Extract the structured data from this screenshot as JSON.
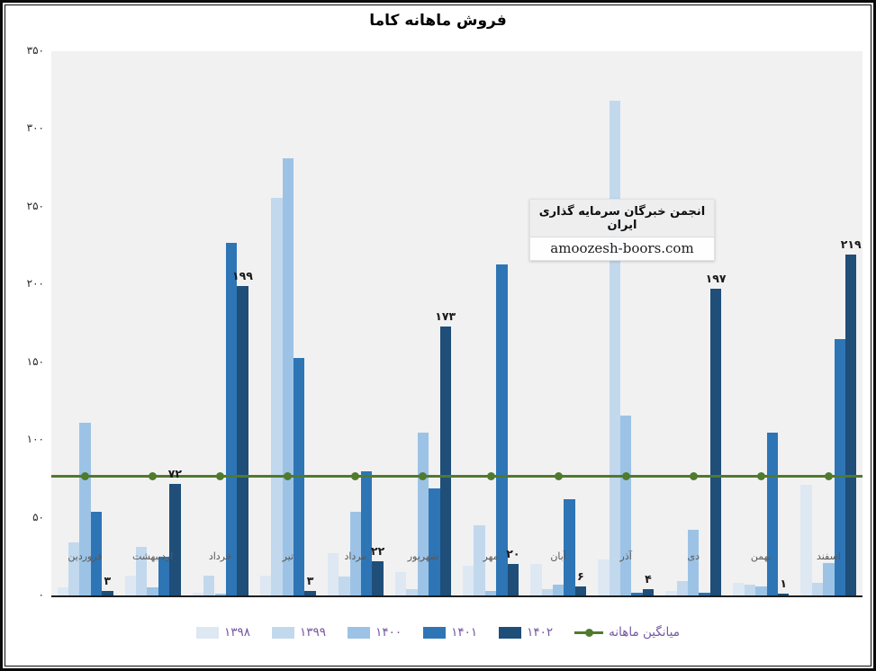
{
  "title": "فروش ماهانه کاما",
  "watermark": {
    "line1": "انجمن خبرگان سرمایه گذاری ایران",
    "line2": "amoozesh-boors.com"
  },
  "colors": {
    "plot_background": "#f1f1f2",
    "axis_line": "#1f1f1f",
    "legend_text": "#7456a3",
    "data_label_text": "#1a1a1a",
    "average_line": "#507a2d"
  },
  "chart_data": {
    "type": "bar",
    "title": "فروش ماهانه کاما",
    "categories": [
      "فروردین",
      "اردیبهشت",
      "خرداد",
      "تیر",
      "مرداد",
      "شهریور",
      "مهر",
      "آبان",
      "آذر",
      "دی",
      "بهمن",
      "اسفند"
    ],
    "series": [
      {
        "name": "۱۳۹۸",
        "color": "#dde8f3",
        "values": [
          5,
          13,
          2,
          13,
          27,
          15,
          19,
          20,
          23,
          3,
          8,
          71
        ]
      },
      {
        "name": "۱۳۹۹",
        "color": "#c2d8ed",
        "values": [
          34,
          31,
          13,
          256,
          12,
          4,
          45,
          4,
          318,
          9,
          7,
          8
        ]
      },
      {
        "name": "۱۴۰۰",
        "color": "#9cc3e5",
        "values": [
          111,
          5,
          1,
          281,
          54,
          105,
          3,
          7,
          116,
          42,
          6,
          21
        ]
      },
      {
        "name": "۱۴۰۱",
        "color": "#2e75b6",
        "values": [
          54,
          25,
          227,
          153,
          80,
          69,
          213,
          62,
          2,
          2,
          105,
          165
        ]
      },
      {
        "name": "۱۴۰۲",
        "color": "#1f4e79",
        "values": [
          3,
          72,
          199,
          3,
          22,
          173,
          20,
          6,
          4,
          197,
          1,
          219
        ],
        "labels": [
          "۳",
          "۷۲",
          "۱۹۹",
          "۳",
          "۲۲",
          "۱۷۳",
          "۲۰",
          "۶",
          "۴",
          "۱۹۷",
          "۱",
          "۲۱۹"
        ]
      }
    ],
    "average_line": {
      "label": "میانگین ماهانه",
      "value": 76.6,
      "color": "#507a2d"
    },
    "ylim": [
      0,
      350
    ],
    "ytick_step": 50,
    "yticks_fa": [
      "۰",
      "۵۰",
      "۱۰۰",
      "۱۵۰",
      "۲۰۰",
      "۲۵۰",
      "۳۰۰",
      "۳۵۰"
    ],
    "grid": false,
    "legend_position": "bottom"
  }
}
